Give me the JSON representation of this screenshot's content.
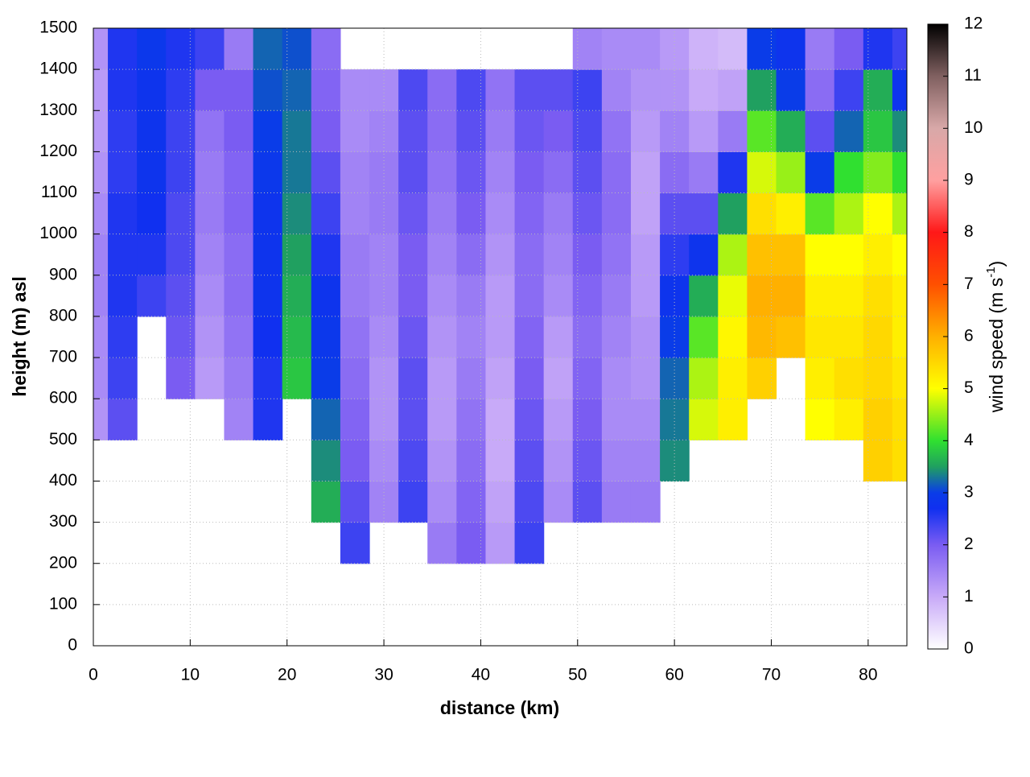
{
  "chart_data": {
    "type": "heatmap",
    "xlabel": "distance (km)",
    "ylabel": "height (m) asl",
    "colorbar_label": [
      "wind speed (m s",
      "-1",
      ")"
    ],
    "x": [
      0,
      3,
      6,
      9,
      12,
      15,
      18,
      21,
      24,
      27,
      30,
      33,
      36,
      39,
      42,
      45,
      48,
      51,
      54,
      57,
      60,
      63,
      66,
      69,
      72,
      75,
      78,
      81,
      84
    ],
    "y": [
      250,
      350,
      450,
      550,
      650,
      750,
      850,
      950,
      1050,
      1150,
      1250,
      1350,
      1450
    ],
    "values": [
      [
        null,
        null,
        null,
        1.3,
        1.4,
        1.4,
        1.5,
        1.5,
        1.4,
        1.3,
        1.2,
        1.2,
        1.3
      ],
      [
        null,
        null,
        null,
        2.2,
        2.4,
        2.5,
        2.6,
        2.6,
        2.6,
        2.5,
        2.5,
        2.6,
        2.6
      ],
      [
        null,
        null,
        null,
        null,
        null,
        null,
        2.4,
        2.6,
        2.7,
        2.8,
        2.8,
        2.8,
        2.9
      ],
      [
        null,
        null,
        null,
        null,
        2.0,
        2.1,
        2.2,
        2.3,
        2.3,
        2.4,
        2.4,
        2.5,
        2.6
      ],
      [
        null,
        null,
        null,
        null,
        1.2,
        1.3,
        1.4,
        1.5,
        1.6,
        1.6,
        1.7,
        2.0,
        2.4
      ],
      [
        null,
        null,
        null,
        1.5,
        1.6,
        1.7,
        1.8,
        1.8,
        1.9,
        1.9,
        2.0,
        2.0,
        1.6
      ],
      [
        null,
        null,
        null,
        2.6,
        2.6,
        2.7,
        2.8,
        2.8,
        2.8,
        2.9,
        3.0,
        3.1,
        3.2
      ],
      [
        null,
        null,
        null,
        null,
        3.8,
        3.7,
        3.6,
        3.5,
        3.4,
        3.3,
        3.3,
        3.2,
        3.1
      ],
      [
        null,
        3.6,
        3.4,
        3.2,
        3.0,
        2.9,
        2.8,
        2.6,
        2.4,
        2.2,
        2.0,
        1.9,
        1.8
      ],
      [
        2.4,
        2.2,
        2.0,
        1.9,
        1.8,
        1.7,
        1.6,
        1.6,
        1.5,
        1.5,
        1.4,
        1.4,
        null
      ],
      [
        null,
        1.5,
        1.4,
        1.3,
        1.3,
        1.4,
        1.5,
        1.5,
        1.6,
        1.6,
        1.5,
        1.4,
        null
      ],
      [
        null,
        2.4,
        2.3,
        2.2,
        2.2,
        2.1,
        2.0,
        2.0,
        2.1,
        2.2,
        2.2,
        2.3,
        null
      ],
      [
        1.6,
        1.4,
        1.3,
        1.2,
        1.2,
        1.3,
        1.4,
        1.5,
        1.6,
        1.7,
        1.8,
        1.8,
        null
      ],
      [
        2.0,
        1.9,
        1.8,
        1.7,
        1.6,
        1.5,
        1.6,
        1.8,
        2.0,
        2.1,
        2.2,
        2.3,
        null
      ],
      [
        1.2,
        1.1,
        1.0,
        1.0,
        1.1,
        1.2,
        1.2,
        1.3,
        1.4,
        1.5,
        1.6,
        1.7,
        null
      ],
      [
        2.4,
        2.3,
        2.2,
        2.1,
        2.0,
        1.9,
        1.8,
        1.8,
        1.9,
        2.0,
        2.1,
        2.2,
        null
      ],
      [
        null,
        1.4,
        1.3,
        1.2,
        1.1,
        1.2,
        1.4,
        1.5,
        1.6,
        1.8,
        2.0,
        2.2,
        null
      ],
      [
        null,
        2.2,
        2.1,
        2.0,
        1.9,
        1.8,
        1.9,
        2.0,
        2.1,
        2.2,
        2.3,
        2.4,
        1.5
      ],
      [
        null,
        1.6,
        1.5,
        1.4,
        1.4,
        1.5,
        1.6,
        1.7,
        1.8,
        1.8,
        1.7,
        1.5,
        1.4
      ],
      [
        null,
        1.6,
        1.5,
        1.4,
        1.3,
        1.3,
        1.2,
        1.2,
        1.1,
        1.1,
        1.2,
        1.3,
        1.4
      ],
      [
        null,
        null,
        3.4,
        3.3,
        3.2,
        3.0,
        2.8,
        2.5,
        2.2,
        1.8,
        1.5,
        1.3,
        1.2
      ],
      [
        null,
        null,
        null,
        4.8,
        4.6,
        4.2,
        3.6,
        2.8,
        2.2,
        1.6,
        1.2,
        1.0,
        0.9
      ],
      [
        null,
        null,
        null,
        5.2,
        5.2,
        5.1,
        4.9,
        4.6,
        3.5,
        2.6,
        1.6,
        1.1,
        0.8
      ],
      [
        null,
        null,
        null,
        null,
        5.6,
        5.9,
        6.0,
        5.8,
        5.4,
        4.8,
        4.2,
        3.5,
        3.0
      ],
      [
        null,
        null,
        null,
        null,
        null,
        5.8,
        6.0,
        5.8,
        5.2,
        4.5,
        3.6,
        3.0,
        2.8
      ],
      [
        null,
        null,
        null,
        5.0,
        5.2,
        5.3,
        5.2,
        5.0,
        4.2,
        3.0,
        2.2,
        1.8,
        1.6
      ],
      [
        null,
        null,
        null,
        5.2,
        5.4,
        5.3,
        5.2,
        5.0,
        4.6,
        4.0,
        3.2,
        2.4,
        2.0
      ],
      [
        null,
        null,
        5.6,
        5.6,
        5.5,
        5.5,
        5.4,
        5.2,
        5.0,
        4.4,
        3.8,
        3.6,
        2.6
      ],
      [
        null,
        null,
        5.4,
        5.4,
        5.3,
        5.2,
        5.2,
        5.0,
        4.6,
        4.0,
        3.4,
        2.8,
        2.4
      ]
    ],
    "xlim": [
      0,
      84
    ],
    "ylim": [
      0,
      1500
    ],
    "xticks": [
      0,
      10,
      20,
      30,
      40,
      50,
      60,
      70,
      80
    ],
    "yticks": [
      0,
      100,
      200,
      300,
      400,
      500,
      600,
      700,
      800,
      900,
      1000,
      1100,
      1200,
      1300,
      1400,
      1500
    ],
    "clim": [
      0,
      12
    ],
    "cticks": [
      0,
      1,
      2,
      3,
      4,
      5,
      6,
      7,
      8,
      9,
      10,
      11,
      12
    ],
    "grid": true,
    "colorscale": [
      [
        0,
        "#ffffff"
      ],
      [
        1,
        "#c8aaf8"
      ],
      [
        2,
        "#7a5cf2"
      ],
      [
        2.7,
        "#1030f0"
      ],
      [
        3,
        "#0a3ce8"
      ],
      [
        3.5,
        "#20a060"
      ],
      [
        4,
        "#30e030"
      ],
      [
        5,
        "#ffff00"
      ],
      [
        6,
        "#ffb000"
      ],
      [
        7,
        "#ff5000"
      ],
      [
        8,
        "#ff1818"
      ],
      [
        9,
        "#ffa0a0"
      ],
      [
        10,
        "#d8a8a8"
      ],
      [
        11,
        "#806060"
      ],
      [
        12,
        "#000000"
      ]
    ]
  }
}
